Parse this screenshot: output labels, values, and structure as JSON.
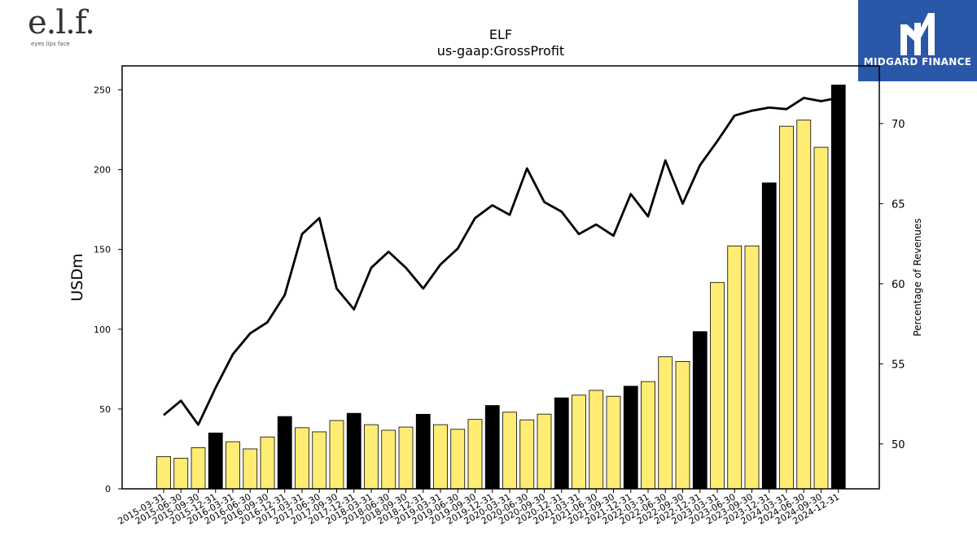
{
  "logos": {
    "left_wordmark": "e.l.f.",
    "left_tagline": "eyes lips face",
    "right_name": "MIDGARD FINANCE"
  },
  "colors": {
    "bar_quarter": "#ffec73",
    "bar_year_end": "#000000",
    "line": "#000000",
    "midgard_blue": "#2a57a8"
  },
  "chart_data": {
    "type": "bar",
    "title": "ELF",
    "subtitle": "us-gaap:GrossProfit",
    "ylabel": "USDm",
    "y2label": "Percentage of Revenues",
    "ylim": [
      0,
      265
    ],
    "y2lim": [
      47.2,
      73.6
    ],
    "yticks": [
      0,
      50,
      100,
      150,
      200,
      250
    ],
    "y2ticks": [
      50,
      55,
      60,
      65,
      70
    ],
    "grid": false,
    "categories": [
      "2015-03-31",
      "2015-06-30",
      "2015-09-30",
      "2015-12-31",
      "2016-03-31",
      "2016-06-30",
      "2016-09-30",
      "2016-12-31",
      "2017-03-31",
      "2017-06-30",
      "2017-09-30",
      "2017-12-31",
      "2018-03-31",
      "2018-06-30",
      "2018-09-30",
      "2018-12-31",
      "2019-03-31",
      "2019-06-30",
      "2019-09-30",
      "2019-12-31",
      "2020-03-31",
      "2020-06-30",
      "2020-09-30",
      "2020-12-31",
      "2021-03-31",
      "2021-06-30",
      "2021-09-30",
      "2021-12-31",
      "2022-03-31",
      "2022-06-30",
      "2022-09-30",
      "2022-12-31",
      "2023-03-31",
      "2023-06-30",
      "2023-09-30",
      "2023-12-31",
      "2024-03-31",
      "2024-06-30",
      "2024-09-30",
      "2024-12-31"
    ],
    "series": [
      {
        "kind": "bar",
        "values": [
          20.2,
          19.2,
          25.8,
          35.0,
          29.5,
          25.0,
          32.5,
          45.3,
          38.3,
          35.7,
          42.8,
          47.3,
          40.2,
          36.7,
          38.7,
          46.7,
          40.2,
          37.3,
          43.5,
          52.2,
          48.0,
          43.2,
          46.8,
          57.0,
          58.7,
          61.7,
          58.0,
          64.3,
          67.2,
          82.7,
          79.8,
          98.5,
          129.3,
          152.2,
          152.2,
          191.7,
          227.2,
          231.0,
          214.0,
          253.0
        ],
        "highlight_year_end": true
      },
      {
        "kind": "line",
        "axis": "right",
        "values": [
          51.8,
          52.7,
          51.2,
          53.5,
          55.6,
          56.9,
          57.6,
          59.3,
          63.1,
          64.1,
          59.7,
          58.4,
          61.0,
          62.0,
          61.0,
          59.7,
          61.2,
          62.2,
          64.1,
          64.9,
          64.3,
          67.2,
          65.1,
          64.5,
          63.1,
          63.7,
          63.0,
          65.6,
          64.2,
          67.7,
          65.0,
          67.4,
          68.9,
          70.5,
          70.8,
          71.0,
          70.9,
          71.6,
          71.4,
          71.6
        ]
      }
    ]
  }
}
